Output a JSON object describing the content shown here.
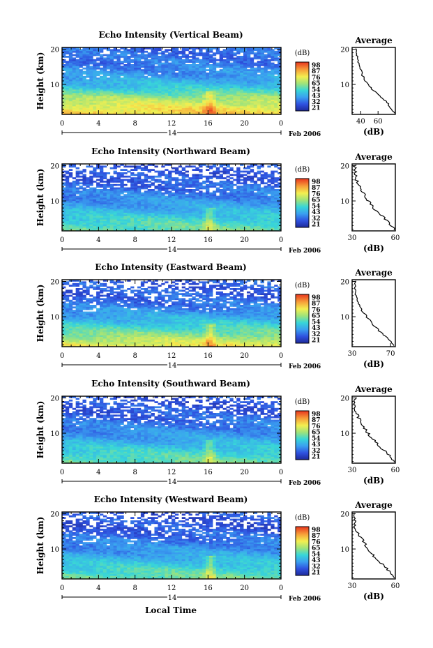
{
  "figure": {
    "date_label": "Feb 2006",
    "day_label": "14",
    "xlabel": "Local Time",
    "ylabel": "Height (km)",
    "colorbar_unit": "(dB)",
    "colorbar_ticks": [
      "21",
      "32",
      "43",
      "54",
      "65",
      "76",
      "87",
      "98"
    ],
    "avg_title": "Average",
    "avg_xlabel": "(dB)"
  },
  "chart_data": [
    {
      "type": "heatmap",
      "title": "Echo Intensity (Vertical Beam)",
      "xlabel": "Local Time",
      "ylabel": "Height (km)",
      "x_ticks": [
        "0",
        "4",
        "8",
        "12",
        "16",
        "20",
        "0"
      ],
      "y_ticks": [
        "10",
        "20"
      ],
      "xlim": [
        0,
        24
      ],
      "ylim": [
        1.5,
        20.5
      ],
      "color_scale": [
        21,
        98
      ],
      "profile": {
        "xlim": [
          30,
          80
        ],
        "x_ticks": [
          "40",
          "60"
        ],
        "ylim": [
          1.5,
          20.5
        ],
        "height_km": [
          2,
          4,
          6,
          8,
          10,
          12,
          14,
          16,
          18,
          20
        ],
        "avg_db": [
          79,
          73,
          66,
          56,
          48,
          43,
          40,
          37,
          36,
          35
        ]
      }
    },
    {
      "type": "heatmap",
      "title": "Echo Intensity (Northward Beam)",
      "xlabel": "Local Time",
      "ylabel": "Height (km)",
      "x_ticks": [
        "0",
        "4",
        "8",
        "12",
        "16",
        "20",
        "0"
      ],
      "y_ticks": [
        "10",
        "20"
      ],
      "xlim": [
        0,
        24
      ],
      "ylim": [
        1.5,
        20.5
      ],
      "color_scale": [
        21,
        98
      ],
      "profile": {
        "xlim": [
          30,
          60
        ],
        "x_ticks": [
          "30",
          "60"
        ],
        "ylim": [
          1.5,
          20.5
        ],
        "height_km": [
          2,
          4,
          6,
          8,
          10,
          12,
          14,
          16,
          18,
          20
        ],
        "avg_db": [
          59,
          55,
          50,
          45,
          41,
          38,
          35,
          33,
          32,
          32
        ]
      }
    },
    {
      "type": "heatmap",
      "title": "Echo Intensity (Eastward Beam)",
      "xlabel": "Local Time",
      "ylabel": "Height (km)",
      "x_ticks": [
        "0",
        "4",
        "8",
        "12",
        "16",
        "20",
        "0"
      ],
      "y_ticks": [
        "10",
        "20"
      ],
      "xlim": [
        0,
        24
      ],
      "ylim": [
        1.5,
        20.5
      ],
      "color_scale": [
        21,
        98
      ],
      "profile": {
        "xlim": [
          30,
          75
        ],
        "x_ticks": [
          "30",
          "70"
        ],
        "ylim": [
          1.5,
          20.5
        ],
        "height_km": [
          2,
          4,
          6,
          8,
          10,
          12,
          14,
          16,
          18,
          20
        ],
        "avg_db": [
          74,
          66,
          58,
          51,
          45,
          40,
          36,
          34,
          33,
          33
        ]
      }
    },
    {
      "type": "heatmap",
      "title": "Echo Intensity (Southward Beam)",
      "xlabel": "Local Time",
      "ylabel": "Height (km)",
      "x_ticks": [
        "0",
        "4",
        "8",
        "12",
        "16",
        "20",
        "0"
      ],
      "y_ticks": [
        "10",
        "20"
      ],
      "xlim": [
        0,
        24
      ],
      "ylim": [
        1.5,
        20.5
      ],
      "color_scale": [
        21,
        98
      ],
      "profile": {
        "xlim": [
          30,
          60
        ],
        "x_ticks": [
          "30",
          "60"
        ],
        "ylim": [
          1.5,
          20.5
        ],
        "height_km": [
          2,
          4,
          6,
          8,
          10,
          12,
          14,
          16,
          18,
          20
        ],
        "avg_db": [
          59,
          55,
          50,
          45,
          41,
          38,
          35,
          33,
          32,
          32
        ]
      }
    },
    {
      "type": "heatmap",
      "title": "Echo Intensity (Westward Beam)",
      "xlabel": "Local Time",
      "ylabel": "Height (km)",
      "x_ticks": [
        "0",
        "4",
        "8",
        "12",
        "16",
        "20",
        "0"
      ],
      "y_ticks": [
        "10",
        "20"
      ],
      "xlim": [
        0,
        24
      ],
      "ylim": [
        1.5,
        20.5
      ],
      "color_scale": [
        21,
        98
      ],
      "profile": {
        "xlim": [
          30,
          60
        ],
        "x_ticks": [
          "30",
          "60"
        ],
        "ylim": [
          1.5,
          20.5
        ],
        "height_km": [
          2,
          4,
          6,
          8,
          10,
          12,
          14,
          16,
          18,
          20
        ],
        "avg_db": [
          59,
          55,
          50,
          45,
          41,
          38,
          35,
          32,
          32,
          32
        ]
      }
    }
  ]
}
